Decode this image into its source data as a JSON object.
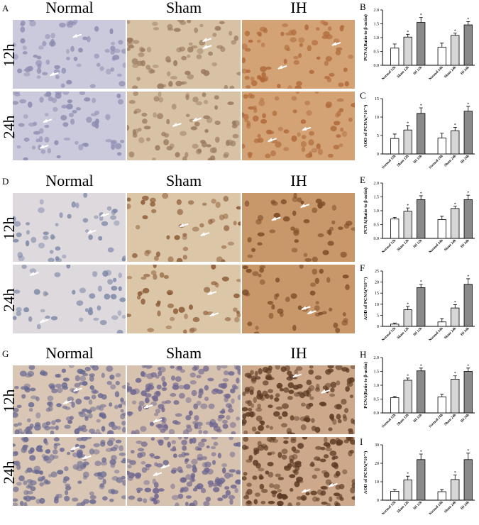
{
  "column_titles": [
    "Normal",
    "Sham",
    "IH"
  ],
  "row_labels": [
    "12h",
    "24h"
  ],
  "micrograph_panels": [
    {
      "label": "A",
      "bg": [
        "#cbc9dc",
        "#d8c2a6",
        "#d3a275"
      ],
      "nucleus": [
        "#8c8cb0",
        "#9a7a5e",
        "#b06a3a"
      ]
    },
    {
      "label": "D",
      "bg": [
        "#ded9dd",
        "#dcc6a8",
        "#c8976a"
      ],
      "nucleus": [
        "#7e8aa8",
        "#8c5a34",
        "#7a4a26"
      ]
    },
    {
      "label": "G",
      "bg": [
        "#d9c6b4",
        "#d6c2ae",
        "#cda88a"
      ],
      "nucleus": [
        "#6a6a92",
        "#6e6690",
        "#5c3a24"
      ]
    }
  ],
  "chart_panels": [
    {
      "label": "B",
      "ylabel": "PCNA(Ratio to β-actin)"
    },
    {
      "label": "C",
      "ylabel": "AOD of PCNA(*10⁻²)"
    },
    {
      "label": "E",
      "ylabel": "PCNA(Ratio to β-actin)"
    },
    {
      "label": "F",
      "ylabel": "AOD of PCNA(*10⁻²)"
    },
    {
      "label": "H",
      "ylabel": "PCNA(Ratio to β-actin)"
    },
    {
      "label": "I",
      "ylabel": "AOD of PCNA(*10⁻²)"
    }
  ],
  "chart_data": [
    {
      "type": "bar",
      "ylabel": "PCNA(Ratio to β-actin)",
      "ylim": [
        0,
        2.0
      ],
      "yticks": [
        0.0,
        0.5,
        1.0,
        1.5,
        2.0
      ],
      "categories": [
        "Normal 12h",
        "Sham 12h",
        "IH 12h",
        "Normal 24h",
        "Sham 24h",
        "IH 24h"
      ],
      "values": [
        0.62,
        1.02,
        1.55,
        0.65,
        1.08,
        1.46
      ],
      "errors": [
        0.15,
        0.1,
        0.18,
        0.15,
        0.08,
        0.12
      ],
      "significance": [
        "",
        "*",
        "*",
        "",
        "*",
        "*"
      ],
      "fills": [
        "#ffffff",
        "#d6d6d6",
        "#8a8a8a",
        "#ffffff",
        "#d6d6d6",
        "#8a8a8a"
      ]
    },
    {
      "type": "bar",
      "ylabel": "AOD of PCNA(*10⁻²)",
      "ylim": [
        0,
        15
      ],
      "yticks": [
        0,
        5,
        10,
        15
      ],
      "categories": [
        "Normal 12h",
        "Sham 12h",
        "IH 12h",
        "Normal 24h",
        "Sham 24h",
        "IH 24h"
      ],
      "values": [
        4.2,
        6.5,
        11.0,
        4.3,
        6.3,
        11.6
      ],
      "errors": [
        1.2,
        1.2,
        1.5,
        1.3,
        0.9,
        1.3
      ],
      "significance": [
        "",
        "*",
        "*",
        "",
        "*",
        "*"
      ],
      "fills": [
        "#ffffff",
        "#d6d6d6",
        "#8a8a8a",
        "#ffffff",
        "#d6d6d6",
        "#8a8a8a"
      ]
    },
    {
      "type": "bar",
      "ylabel": "PCNA(Ratio to β-actin)",
      "ylim": [
        0,
        2.0
      ],
      "yticks": [
        0.0,
        0.5,
        1.0,
        1.5,
        2.0
      ],
      "categories": [
        "Normal 12h",
        "Sham 12h",
        "IH 12h",
        "Normal 24h",
        "Sham 24h",
        "IH 24h"
      ],
      "values": [
        0.7,
        0.98,
        1.4,
        0.68,
        1.08,
        1.4
      ],
      "errors": [
        0.06,
        0.12,
        0.14,
        0.12,
        0.08,
        0.16
      ],
      "significance": [
        "",
        "*",
        "*",
        "",
        "*",
        "*"
      ],
      "fills": [
        "#ffffff",
        "#d6d6d6",
        "#8a8a8a",
        "#ffffff",
        "#d6d6d6",
        "#8a8a8a"
      ]
    },
    {
      "type": "bar",
      "ylabel": "AOD of PCNA(*10⁻²)",
      "ylim": [
        0,
        25
      ],
      "yticks": [
        0,
        5,
        10,
        15,
        20,
        25
      ],
      "categories": [
        "Normal 12h",
        "Sham 12h",
        "IH 12h",
        "Normal 24h",
        "Sham 24h",
        "IH 24h"
      ],
      "values": [
        1.0,
        7.5,
        17.5,
        2.0,
        8.3,
        19.0
      ],
      "errors": [
        0.5,
        1.5,
        1.5,
        1.5,
        1.5,
        2.5
      ],
      "significance": [
        "",
        "*",
        "*",
        "",
        "*",
        "*"
      ],
      "fills": [
        "#ffffff",
        "#d6d6d6",
        "#8a8a8a",
        "#ffffff",
        "#d6d6d6",
        "#8a8a8a"
      ]
    },
    {
      "type": "bar",
      "ylabel": "PCNA(Ratio to β-actin)",
      "ylim": [
        0,
        2.0
      ],
      "yticks": [
        0.0,
        0.5,
        1.0,
        1.5,
        2.0
      ],
      "categories": [
        "Normal 12h",
        "Sham 12h",
        "IH 12h",
        "Normal 24h",
        "Sham 24h",
        "IH 24h"
      ],
      "values": [
        0.55,
        1.18,
        1.52,
        0.58,
        1.22,
        1.5
      ],
      "errors": [
        0.05,
        0.08,
        0.1,
        0.1,
        0.12,
        0.12
      ],
      "significance": [
        "",
        "*",
        "*",
        "",
        "*",
        "*"
      ],
      "fills": [
        "#ffffff",
        "#d6d6d6",
        "#8a8a8a",
        "#ffffff",
        "#d6d6d6",
        "#8a8a8a"
      ]
    },
    {
      "type": "bar",
      "ylabel": "AOD of PCNA(*10⁻²)",
      "ylim": [
        0,
        30
      ],
      "yticks": [
        0,
        10,
        20,
        30
      ],
      "categories": [
        "Normal 12h",
        "Sham 12h",
        "IH 12h",
        "Normal 24h",
        "Sham 24h",
        "IH 24h"
      ],
      "values": [
        4.8,
        11.0,
        22.0,
        4.6,
        11.2,
        22.0
      ],
      "errors": [
        1.0,
        2.0,
        3.0,
        1.2,
        2.5,
        3.5
      ],
      "significance": [
        "",
        "*",
        "*",
        "",
        "*",
        "*"
      ],
      "fills": [
        "#ffffff",
        "#d6d6d6",
        "#8a8a8a",
        "#ffffff",
        "#d6d6d6",
        "#8a8a8a"
      ]
    }
  ]
}
